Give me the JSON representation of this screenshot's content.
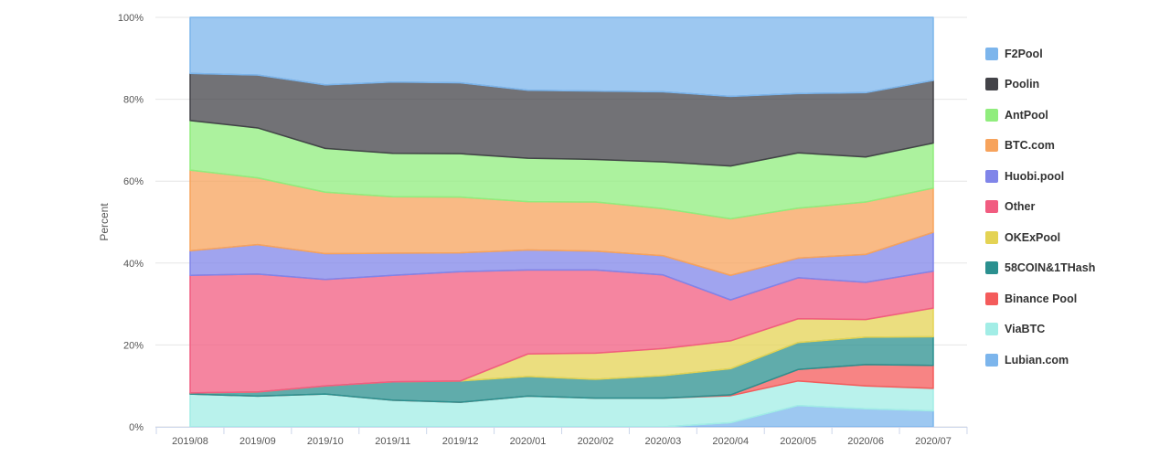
{
  "chart_data": {
    "type": "area",
    "stacking": "percent",
    "ylabel": "Percent",
    "ylim": [
      0,
      100
    ],
    "y_ticks": [
      "0%",
      "20%",
      "40%",
      "60%",
      "80%",
      "100%"
    ],
    "categories": [
      "2019/08",
      "2019/09",
      "2019/10",
      "2019/11",
      "2019/12",
      "2020/01",
      "2020/02",
      "2020/03",
      "2020/04",
      "2020/05",
      "2020/06",
      "2020/07"
    ],
    "grid": "horizontal",
    "legend_position": "right",
    "series": [
      {
        "name": "Lubian.com",
        "color": "#7cb5ec",
        "values": [
          0,
          0,
          0,
          0,
          0,
          0,
          0,
          0,
          1,
          5.2,
          4.4,
          3.9
        ]
      },
      {
        "name": "ViaBTC",
        "color": "#a2ede6",
        "values": [
          8,
          7.5,
          8,
          6.5,
          6,
          7.5,
          7,
          7,
          6.6,
          6,
          5.6,
          5.5
        ]
      },
      {
        "name": "Binance Pool",
        "color": "#f45b5b",
        "values": [
          0,
          0,
          0,
          0,
          0,
          0,
          0,
          0,
          0.2,
          2.8,
          5.2,
          5.6
        ]
      },
      {
        "name": "58COIN&1THash",
        "color": "#2b908f",
        "values": [
          0.3,
          1,
          2,
          4.5,
          5.2,
          4.8,
          4.6,
          5.5,
          6.4,
          6.6,
          6.7,
          7
        ]
      },
      {
        "name": "OKExPool",
        "color": "#e4d354",
        "values": [
          0,
          0,
          0,
          0,
          0,
          5.5,
          6.4,
          6.6,
          6.8,
          5.8,
          4.3,
          7
        ]
      },
      {
        "name": "Other",
        "color": "#f15c80",
        "values": [
          28.7,
          28.8,
          26,
          26,
          26.7,
          20.5,
          20.3,
          18,
          10,
          10,
          9.1,
          9
        ]
      },
      {
        "name": "Huobi.pool",
        "color": "#8085e9",
        "values": [
          6,
          7.2,
          6.3,
          5.4,
          4.6,
          4.9,
          4.6,
          4.7,
          6,
          4.8,
          6.8,
          9.5
        ]
      },
      {
        "name": "BTC.com",
        "color": "#f7a35c",
        "values": [
          19.7,
          16.3,
          15,
          13.8,
          13.6,
          11.8,
          12,
          11.5,
          13.8,
          12.2,
          12.8,
          10.8
        ]
      },
      {
        "name": "AntPool",
        "color": "#90ed7d",
        "values": [
          12.1,
          12.2,
          10.7,
          10.6,
          10.6,
          10.6,
          10.4,
          11.4,
          12.9,
          13.5,
          11,
          11
        ]
      },
      {
        "name": "Poolin",
        "color": "#434348",
        "values": [
          11.5,
          12.9,
          15.5,
          17.4,
          17.3,
          16.6,
          16.7,
          17.1,
          17,
          14.5,
          15.7,
          15.3
        ]
      },
      {
        "name": "F2Pool",
        "color": "#7cb5ec",
        "values": [
          13.7,
          14.1,
          16.5,
          15.8,
          16,
          17.8,
          18,
          18.2,
          19.3,
          18.6,
          18.4,
          15.4
        ]
      }
    ]
  },
  "legend": {
    "items": [
      "F2Pool",
      "Poolin",
      "AntPool",
      "BTC.com",
      "Huobi.pool",
      "Other",
      "OKExPool",
      "58COIN&1THash",
      "Binance Pool",
      "ViaBTC",
      "Lubian.com"
    ]
  }
}
